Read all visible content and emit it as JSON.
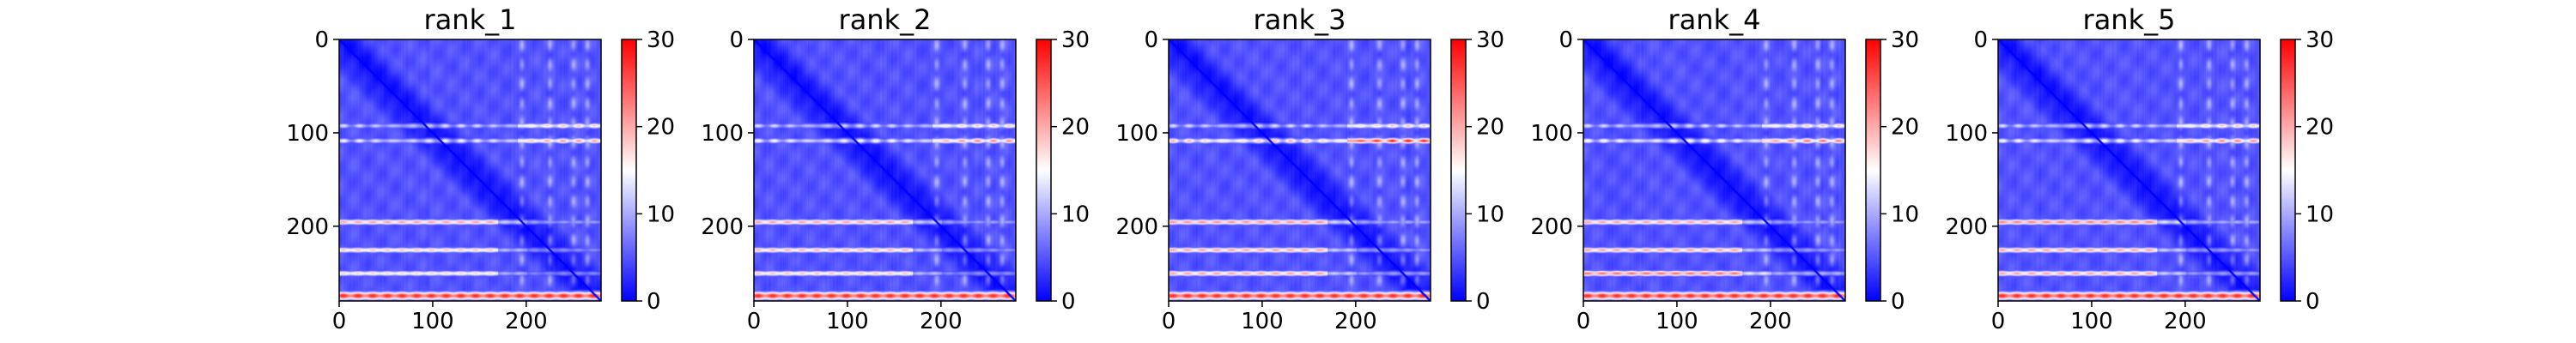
{
  "chart_data": [
    {
      "type": "heatmap",
      "title": "rank_1",
      "x_ticks": [
        0,
        100,
        200
      ],
      "y_ticks": [
        0,
        100,
        200
      ],
      "matrix_size": 280,
      "colorbar": {
        "ticks": [
          0,
          10,
          20,
          30
        ],
        "vmin": 0,
        "vmax": 30,
        "colormap": "bwr"
      },
      "hot_rows": [
        {
          "row": 92,
          "value": 16
        },
        {
          "row": 108,
          "value": 18
        },
        {
          "row": 195,
          "value": 21
        },
        {
          "row": 225,
          "value": 19
        },
        {
          "row": 250,
          "value": 18
        },
        {
          "row": 274,
          "value": 28
        }
      ]
    },
    {
      "type": "heatmap",
      "title": "rank_2",
      "x_ticks": [
        0,
        100,
        200
      ],
      "y_ticks": [
        0,
        100,
        200
      ],
      "matrix_size": 280,
      "colorbar": {
        "ticks": [
          0,
          10,
          20,
          30
        ],
        "vmin": 0,
        "vmax": 30,
        "colormap": "bwr"
      },
      "hot_rows": [
        {
          "row": 92,
          "value": 16
        },
        {
          "row": 108,
          "value": 19
        },
        {
          "row": 195,
          "value": 21
        },
        {
          "row": 225,
          "value": 20
        },
        {
          "row": 250,
          "value": 19
        },
        {
          "row": 274,
          "value": 28
        }
      ]
    },
    {
      "type": "heatmap",
      "title": "rank_3",
      "x_ticks": [
        0,
        100,
        200
      ],
      "y_ticks": [
        0,
        100,
        200
      ],
      "matrix_size": 280,
      "colorbar": {
        "ticks": [
          0,
          10,
          20,
          30
        ],
        "vmin": 0,
        "vmax": 30,
        "colormap": "bwr"
      },
      "hot_rows": [
        {
          "row": 92,
          "value": 16
        },
        {
          "row": 108,
          "value": 24
        },
        {
          "row": 195,
          "value": 22
        },
        {
          "row": 225,
          "value": 21
        },
        {
          "row": 250,
          "value": 21
        },
        {
          "row": 274,
          "value": 28
        }
      ]
    },
    {
      "type": "heatmap",
      "title": "rank_4",
      "x_ticks": [
        0,
        100,
        200
      ],
      "y_ticks": [
        0,
        100,
        200
      ],
      "matrix_size": 280,
      "colorbar": {
        "ticks": [
          0,
          10,
          20,
          30
        ],
        "vmin": 0,
        "vmax": 30,
        "colormap": "bwr"
      },
      "hot_rows": [
        {
          "row": 92,
          "value": 16
        },
        {
          "row": 108,
          "value": 20
        },
        {
          "row": 195,
          "value": 21
        },
        {
          "row": 225,
          "value": 21
        },
        {
          "row": 250,
          "value": 24
        },
        {
          "row": 274,
          "value": 28
        }
      ]
    },
    {
      "type": "heatmap",
      "title": "rank_5",
      "x_ticks": [
        0,
        100,
        200
      ],
      "y_ticks": [
        0,
        100,
        200
      ],
      "matrix_size": 280,
      "colorbar": {
        "ticks": [
          0,
          10,
          20,
          30
        ],
        "vmin": 0,
        "vmax": 30,
        "colormap": "bwr"
      },
      "hot_rows": [
        {
          "row": 92,
          "value": 16
        },
        {
          "row": 108,
          "value": 19
        },
        {
          "row": 195,
          "value": 23
        },
        {
          "row": 225,
          "value": 21
        },
        {
          "row": 250,
          "value": 21
        },
        {
          "row": 274,
          "value": 28
        }
      ]
    }
  ]
}
